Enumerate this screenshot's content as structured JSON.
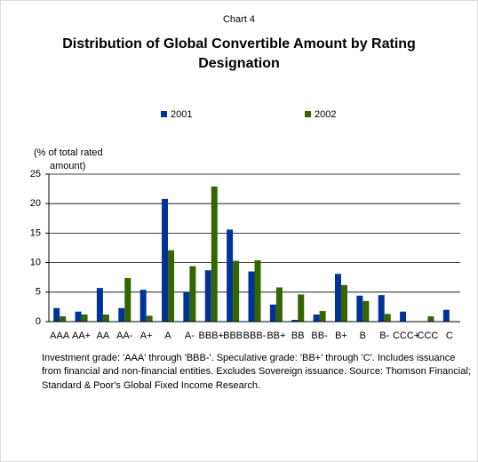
{
  "chart_data": {
    "type": "bar",
    "supertitle": "Chart 4",
    "title": [
      "Distribution of Global Convertible Amount by Rating",
      "Designation"
    ],
    "ylabel": [
      "(% of total rated",
      "amount)"
    ],
    "categories": [
      "AAA",
      "AA+",
      "AA",
      "AA-",
      "A+",
      "A",
      "A-",
      "BBB+",
      "BBB",
      "BBB-",
      "BB+",
      "BB",
      "BB-",
      "B+",
      "B",
      "B-",
      "CCC+",
      "CCC",
      "C"
    ],
    "series": [
      {
        "name": "2001",
        "color": "#003399",
        "values": [
          2.3,
          1.7,
          5.7,
          2.3,
          5.4,
          20.8,
          5.0,
          8.7,
          15.6,
          8.5,
          2.9,
          0.3,
          1.2,
          8.1,
          4.4,
          4.5,
          1.7,
          0,
          2.0
        ]
      },
      {
        "name": "2002",
        "color": "#336600",
        "values": [
          0.9,
          1.2,
          1.2,
          7.4,
          1.0,
          12.1,
          9.4,
          22.9,
          10.3,
          10.4,
          5.8,
          4.6,
          1.8,
          6.2,
          3.5,
          1.3,
          0,
          0.9,
          0
        ]
      }
    ],
    "ylim": [
      0,
      25
    ],
    "yticks": [
      0,
      5,
      10,
      15,
      20,
      25
    ],
    "grid": true,
    "footnote": [
      "Investment grade: 'AAA' through 'BBB-'. Speculative grade: 'BB+' through 'C'. Includes issuance",
      "from financial and non-financial entities. Excludes Sovereign issuance. Source: Thomson Financial;",
      "Standard & Poor's Global Fixed Income Research."
    ]
  }
}
